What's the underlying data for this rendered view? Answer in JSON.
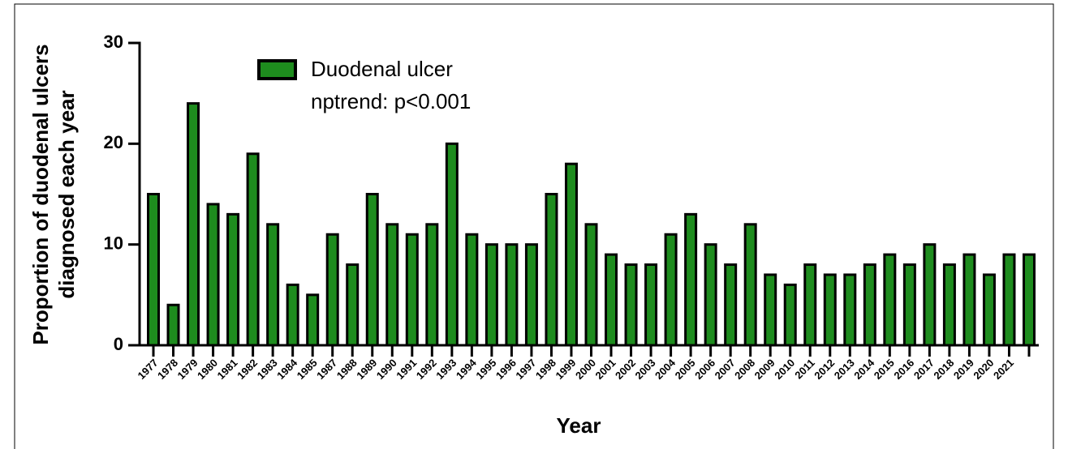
{
  "chart_data": {
    "type": "bar",
    "ylabel": [
      "Proportion of duodenal ulcers",
      "diagnosed each year"
    ],
    "xlabel": "Year",
    "annotation": "nptrend: p<0.001",
    "categories": [
      "1977",
      "1978",
      "1979",
      "1980",
      "1981",
      "1982",
      "1983",
      "1984",
      "1985",
      "1987",
      "1988",
      "1989",
      "1990",
      "1991",
      "1992",
      "1993",
      "1994",
      "1995",
      "1996",
      "1997",
      "1998",
      "1999",
      "2000",
      "2001",
      "2002",
      "2003",
      "2004",
      "2005",
      "2006",
      "2007",
      "2008",
      "2009",
      "2010",
      "2011",
      "2012",
      "2013",
      "2014",
      "2015",
      "2016",
      "2017",
      "2018",
      "2019",
      "2020",
      "2021",
      null
    ],
    "series": [
      {
        "name": "Duodenal ulcer",
        "color": "#1e8c1e",
        "values": [
          15,
          4,
          24,
          14,
          13,
          19,
          12,
          6,
          5,
          11,
          8,
          15,
          12,
          11,
          12,
          20,
          11,
          10,
          10,
          10,
          15,
          18,
          12,
          9,
          8,
          8,
          11,
          13,
          10,
          8,
          12,
          7,
          6,
          8,
          7,
          7,
          8,
          9,
          8,
          10,
          8,
          9,
          7,
          9,
          9
        ]
      }
    ],
    "ylim": [
      0,
      30
    ],
    "yticks": [
      0,
      10,
      20,
      30
    ],
    "grid": false,
    "legend": "upper left"
  }
}
